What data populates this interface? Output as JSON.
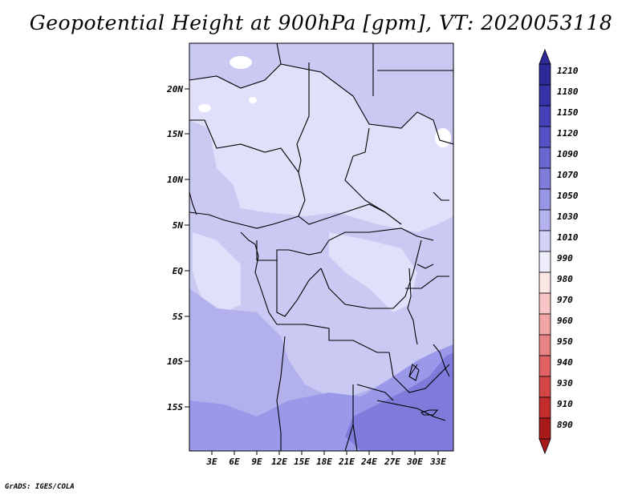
{
  "title": "Geopotential Height at 900hPa [gpm], VT: 2020053118",
  "credit": "GrADS: IGES/COLA",
  "axes": {
    "lat_ticks": [
      "20N",
      "15N",
      "10N",
      "5N",
      "EQ",
      "5S",
      "10S",
      "15S"
    ],
    "lon_ticks": [
      "3E",
      "6E",
      "9E",
      "12E",
      "15E",
      "18E",
      "21E",
      "24E",
      "27E",
      "30E",
      "33E"
    ]
  },
  "colorbar": {
    "labels": [
      "1210",
      "1180",
      "1150",
      "1120",
      "1090",
      "1070",
      "1050",
      "1030",
      "1010",
      "990",
      "980",
      "970",
      "960",
      "950",
      "940",
      "930",
      "910",
      "890"
    ],
    "colors": [
      "#2d2a9a",
      "#3633a8",
      "#4541b8",
      "#5551c6",
      "#6a66d2",
      "#7f7cdc",
      "#9897e6",
      "#b4b3ef",
      "#d2d2f7",
      "#eeeefd",
      "#fde6e6",
      "#f9c6c6",
      "#f2a5a5",
      "#ea8383",
      "#e06262",
      "#d44545",
      "#c42c2c",
      "#a81a1a"
    ]
  },
  "map": {
    "fill_colors": {
      "light": "#e0e0fa",
      "mid": "#c9c9f3",
      "medium": "#b2b1ee",
      "deep": "#9a98e8",
      "deepest": "#7e7bdb"
    }
  }
}
